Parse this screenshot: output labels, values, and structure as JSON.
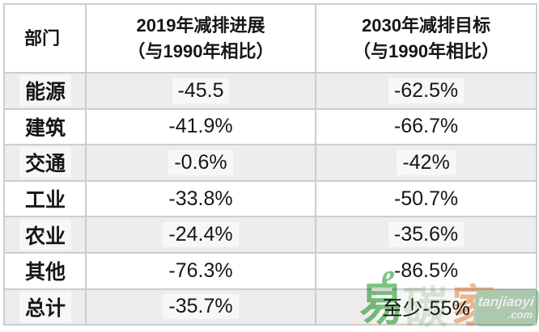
{
  "chart_data": {
    "type": "table",
    "columns": [
      "部门",
      "2019年减排进展（与1990年相比）",
      "2030年减排目标（与1990年相比）"
    ],
    "rows": [
      [
        "能源",
        "-45.5",
        "-62.5%"
      ],
      [
        "建筑",
        "-41.9%",
        "-66.7%"
      ],
      [
        "交通",
        "-0.6%",
        "-42%"
      ],
      [
        "工业",
        "-33.8%",
        "-50.7%"
      ],
      [
        "农业",
        "-24.4%",
        "-35.6%"
      ],
      [
        "其他",
        "-76.3%",
        "-86.5%"
      ],
      [
        "总计",
        "-35.7%",
        "至少-55%"
      ]
    ],
    "layout": {
      "header_background": "#ffffff",
      "row_alt_background": "#ededee",
      "border_color": "#cdcdcd",
      "grid": "on"
    }
  },
  "header": {
    "department": "部门",
    "col2019": {
      "line1": "2019年减排进展",
      "line2": "（与1990年相比）"
    },
    "col2030": {
      "line1": "2030年减排目标",
      "line2": "（与1990年相比）"
    }
  },
  "watermark": {
    "e_glyph": "e",
    "char_yi": "易",
    "char_tan": "碳",
    "char_jia": "家",
    "badge_line1": "tanjiaoyi",
    "badge_line2": ".com",
    "colors": {
      "green": "#7cc47f",
      "pale_tan": "#dcead8",
      "orange": "#f4ba91",
      "badge_bg": "#b9d7ba",
      "badge_text": "#ffffff"
    }
  }
}
